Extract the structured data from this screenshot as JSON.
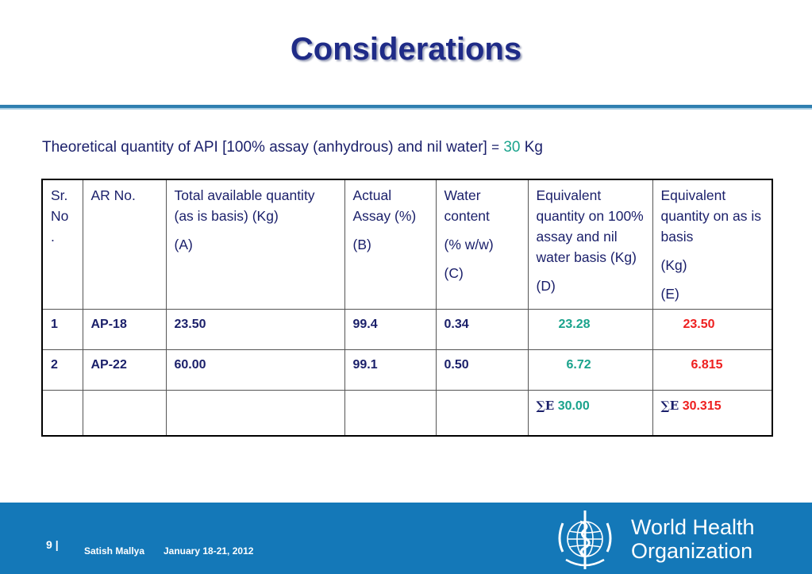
{
  "slide": {
    "title": "Considerations",
    "statement": {
      "text": "Theoretical quantity of API [100% assay (anhydrous) and nil water]",
      "equals": "=",
      "value": "30",
      "unit": "Kg"
    }
  },
  "table": {
    "headers": [
      {
        "lines": [
          "Sr. No ."
        ]
      },
      {
        "lines": [
          "AR No."
        ]
      },
      {
        "lines": [
          "Total available quantity (as is basis) (Kg)",
          "(A)"
        ]
      },
      {
        "lines": [
          "Actual Assay (%)",
          "(B)"
        ]
      },
      {
        "lines": [
          "Water content",
          "(% w/w)",
          "(C)"
        ]
      },
      {
        "lines": [
          "Equivalent quantity on 100% assay and nil water basis (Kg)",
          "(D)"
        ]
      },
      {
        "lines": [
          "Equivalent quantity on as is basis",
          "(Kg)",
          "(E)"
        ]
      }
    ],
    "rows": [
      {
        "sr": "1",
        "ar": "AP-18",
        "total": "23.50",
        "assay": "99.4",
        "water": "0.34",
        "equiv_d": "23.28",
        "equiv_e": "23.50"
      },
      {
        "sr": "2",
        "ar": "AP-22",
        "total": "60.00",
        "assay": "99.1",
        "water": "0.50",
        "equiv_d": "6.72",
        "equiv_e": "6.815"
      }
    ],
    "totals": {
      "sigma_label": "∑E",
      "sum_d": "30.00",
      "sum_e": "30.315"
    }
  },
  "footer": {
    "page_number": "9",
    "separator": "|",
    "author": "Satish Mallya",
    "date": "January 18-21, 2012",
    "org_line1": "World Health",
    "org_line2": "Organization"
  },
  "colors": {
    "title": "#1f2b87",
    "text": "#1a1f6a",
    "teal": "#1aa38c",
    "red": "#ee2020",
    "footer_bg": "#1478b8"
  }
}
